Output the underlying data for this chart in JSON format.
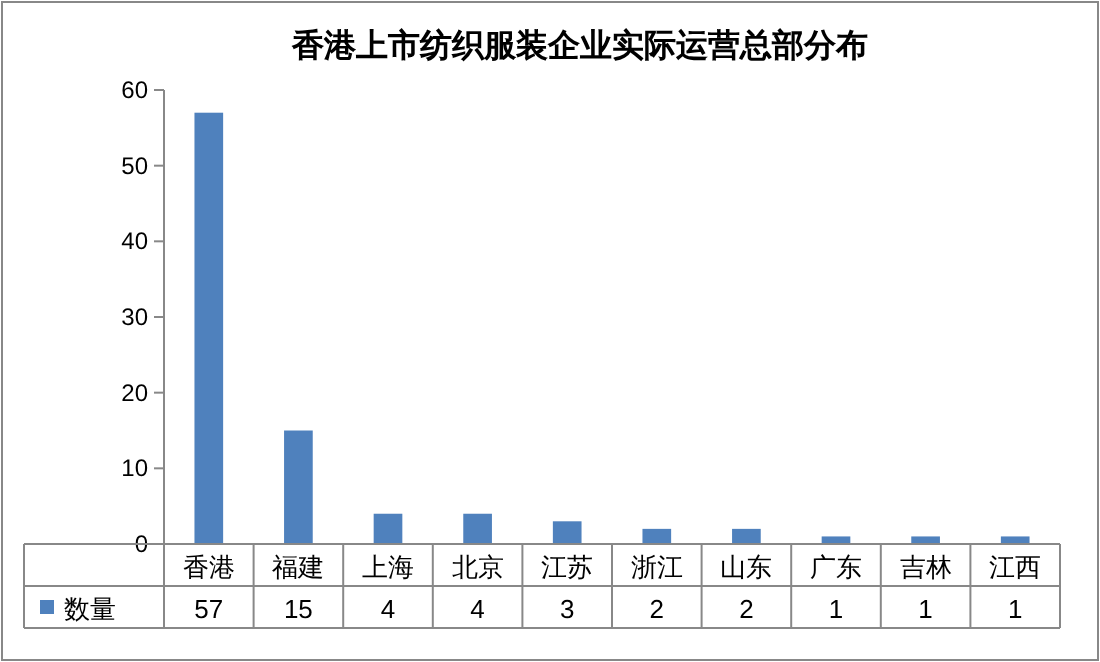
{
  "chart_data": {
    "type": "bar",
    "title": "香港上市纺织服装企业实际运营总部分布",
    "categories": [
      "香港",
      "福建",
      "上海",
      "北京",
      "江苏",
      "浙江",
      "山东",
      "广东",
      "吉林",
      "江西"
    ],
    "series": [
      {
        "name": "数量",
        "color": "#4f81bd",
        "values": [
          57,
          15,
          4,
          4,
          3,
          2,
          2,
          1,
          1,
          1
        ]
      }
    ],
    "ylim": [
      0,
      60
    ],
    "yticks": [
      0,
      10,
      20,
      30,
      40,
      50,
      60
    ],
    "data_labels": true,
    "legend": "bottom",
    "grid": false
  }
}
